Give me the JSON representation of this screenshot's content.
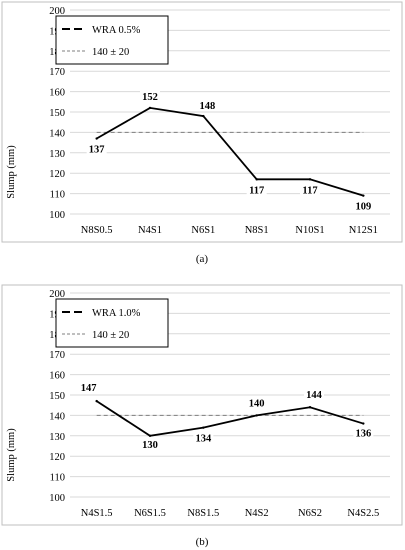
{
  "chart_data": [
    {
      "type": "line",
      "categories": [
        "N8S0.5",
        "N4S1",
        "N6S1",
        "N8S1",
        "N10S1",
        "N12S1"
      ],
      "series": [
        {
          "name": "WRA 0.5%",
          "values": [
            137,
            152,
            148,
            117,
            117,
            109
          ],
          "style": "solid"
        },
        {
          "name": "140 ± 20",
          "values": [
            140,
            140,
            140,
            140,
            140,
            140
          ],
          "style": "dashed"
        }
      ],
      "data_labels": [
        "137",
        "152",
        "148",
        "117",
        "117",
        "109"
      ],
      "xlabel": "",
      "ylabel": "Slump (mm)",
      "ylim": [
        100,
        200
      ],
      "yticks": [
        100,
        110,
        120,
        130,
        140,
        150,
        160,
        170,
        180,
        190,
        200
      ],
      "grid": true,
      "legend_position": "top-left",
      "caption": "(a)"
    },
    {
      "type": "line",
      "categories": [
        "N4S1.5",
        "N6S1.5",
        "N8S1.5",
        "N4S2",
        "N6S2",
        "N4S2.5"
      ],
      "series": [
        {
          "name": "WRA 1.0%",
          "values": [
            147,
            130,
            134,
            140,
            144,
            136
          ],
          "style": "solid"
        },
        {
          "name": "140 ± 20",
          "values": [
            140,
            140,
            140,
            140,
            140,
            140
          ],
          "style": "dashed"
        }
      ],
      "data_labels": [
        "147",
        "130",
        "134",
        "140",
        "144",
        "136"
      ],
      "xlabel": "",
      "ylabel": "Slump (mm)",
      "ylim": [
        100,
        200
      ],
      "yticks": [
        100,
        110,
        120,
        130,
        140,
        150,
        160,
        170,
        180,
        190,
        200
      ],
      "grid": true,
      "legend_position": "top-left",
      "caption": "(b)"
    }
  ],
  "colors": {
    "series": "#000000",
    "target": "#7f7f7f",
    "grid": "#d9d9d9",
    "frame": "#bfbfbf"
  }
}
